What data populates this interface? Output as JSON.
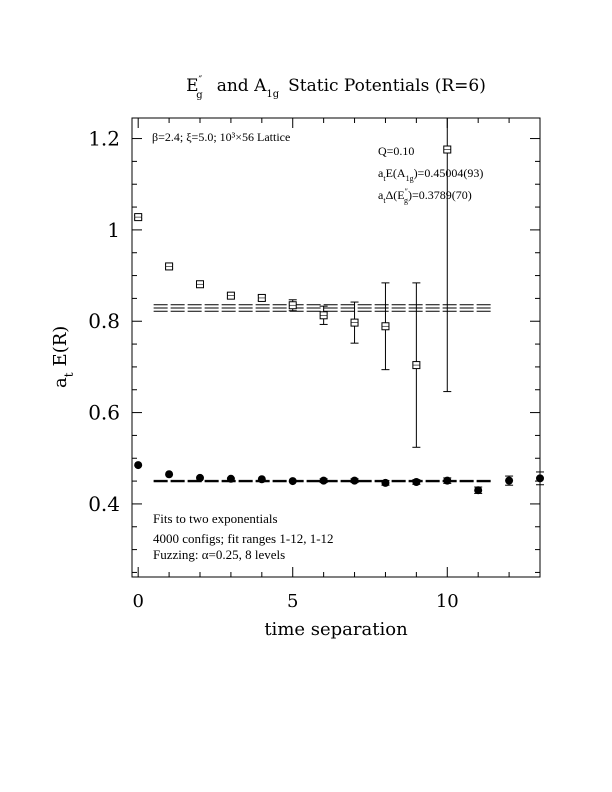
{
  "chart_data": {
    "type": "scatter",
    "title_parts": {
      "eg_base": "E",
      "eg_prime": "″",
      "eg_sub": "g",
      "and_text": "and A",
      "a_sub": "1g",
      "rest": "Static Potentials (R=6)"
    },
    "xlabel": "time separation",
    "ylabel_base": "a",
    "ylabel_sub": "t",
    "ylabel_rest": "E(R)",
    "xlim": [
      -0.2,
      13.0
    ],
    "ylim": [
      0.24,
      1.245
    ],
    "x_ticks": [
      "0",
      "5",
      "10"
    ],
    "x_tick_values": [
      0,
      5,
      10
    ],
    "y_ticks": [
      "0.4",
      "0.6",
      "0.8",
      "1",
      "1.2"
    ],
    "y_tick_values": [
      0.4,
      0.6,
      0.8,
      1.0,
      1.2
    ],
    "annotations": {
      "lattice": "β=2.4; ξ=5.0; 10³×56 Lattice",
      "q": "Q=0.10",
      "fit_a1g_pre": "a",
      "fit_a1g_sub_t": "t",
      "fit_a1g_mid": "E(A",
      "fit_a1g_sub": "1g",
      "fit_a1g_val": ")=0.45004(93)",
      "fit_eg_pre": "a",
      "fit_eg_sub_t": "t",
      "fit_eg_mid": "Δ(E",
      "fit_eg_prime": "″",
      "fit_eg_sub": "g",
      "fit_eg_val": ")=0.3789(70)",
      "note1": "Fits to two exponentials",
      "note2": "4000 configs; fit ranges 1-12, 1-12",
      "note3": "Fuzzing: α=0.25, 8 levels"
    },
    "series": [
      {
        "marker": "filled-circle",
        "points": [
          {
            "x": 0,
            "y": 0.485,
            "err": 0.003
          },
          {
            "x": 1,
            "y": 0.465,
            "err": 0.003
          },
          {
            "x": 2,
            "y": 0.457,
            "err": 0.003
          },
          {
            "x": 3,
            "y": 0.455,
            "err": 0.003
          },
          {
            "x": 4,
            "y": 0.454,
            "err": 0.003
          },
          {
            "x": 5,
            "y": 0.45,
            "err": 0.003
          },
          {
            "x": 6,
            "y": 0.451,
            "err": 0.004
          },
          {
            "x": 7,
            "y": 0.451,
            "err": 0.004
          },
          {
            "x": 8,
            "y": 0.446,
            "err": 0.005
          },
          {
            "x": 9,
            "y": 0.448,
            "err": 0.005
          },
          {
            "x": 10,
            "y": 0.451,
            "err": 0.006
          },
          {
            "x": 11,
            "y": 0.43,
            "err": 0.007
          },
          {
            "x": 12,
            "y": 0.451,
            "err": 0.01
          },
          {
            "x": 13,
            "y": 0.456,
            "err": 0.014
          }
        ],
        "fit": {
          "x0": 0.5,
          "x1": 11.5,
          "y": 0.45,
          "band": 0.0015
        }
      },
      {
        "marker": "open-square",
        "points": [
          {
            "x": 0,
            "y": 1.028,
            "err": 0.004
          },
          {
            "x": 1,
            "y": 0.92,
            "err": 0.004
          },
          {
            "x": 2,
            "y": 0.881,
            "err": 0.004
          },
          {
            "x": 3,
            "y": 0.856,
            "err": 0.005
          },
          {
            "x": 4,
            "y": 0.851,
            "err": 0.006
          },
          {
            "x": 5,
            "y": 0.835,
            "err": 0.012
          },
          {
            "x": 6,
            "y": 0.813,
            "err": 0.02
          },
          {
            "x": 7,
            "y": 0.797,
            "err": 0.045
          },
          {
            "x": 8,
            "y": 0.789,
            "err": 0.095
          },
          {
            "x": 9,
            "y": 0.704,
            "err": 0.18
          },
          {
            "x": 10,
            "y": 1.176,
            "err": 0.53
          }
        ],
        "fit": {
          "x0": 0.5,
          "x1": 11.5,
          "y": 0.829,
          "band": 0.007
        }
      }
    ]
  }
}
